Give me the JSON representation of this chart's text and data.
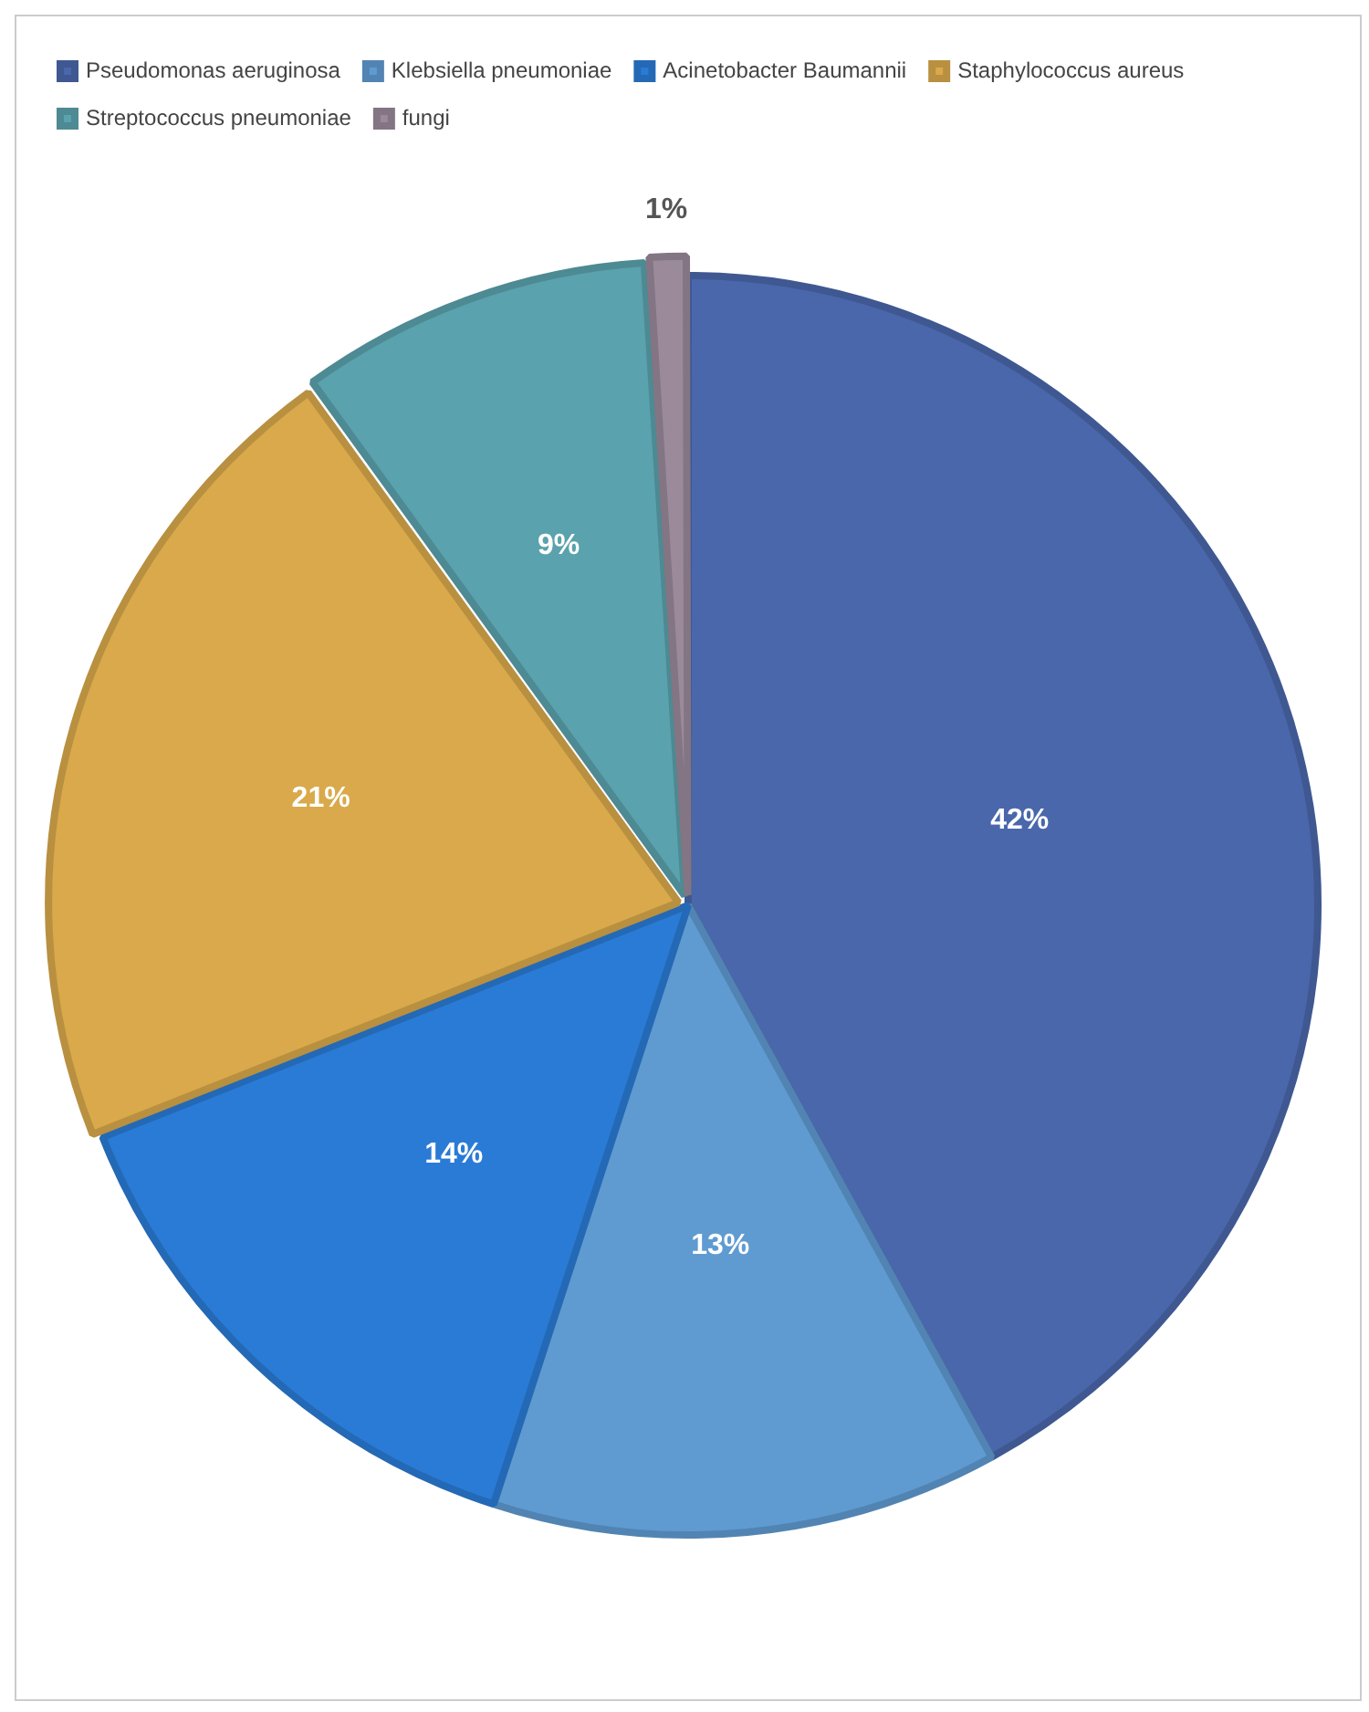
{
  "chart_data": {
    "type": "pie",
    "categories": [
      "Pseudomonas aeruginosa",
      "Klebsiella pneumoniae",
      "Acinetobacter Baumannii",
      "Staphylococcus aureus",
      "Streptococcus pneumoniae",
      "fungi"
    ],
    "values": [
      42,
      13,
      14,
      21,
      9,
      1
    ],
    "colors": [
      "#4a67ab",
      "#5f9bd1",
      "#2a7bd5",
      "#d9a94b",
      "#5aa2ad",
      "#9a8a9a"
    ],
    "value_labels": [
      "42%",
      "13%",
      "14%",
      "21%",
      "9%",
      "1%"
    ],
    "legend": "top"
  }
}
